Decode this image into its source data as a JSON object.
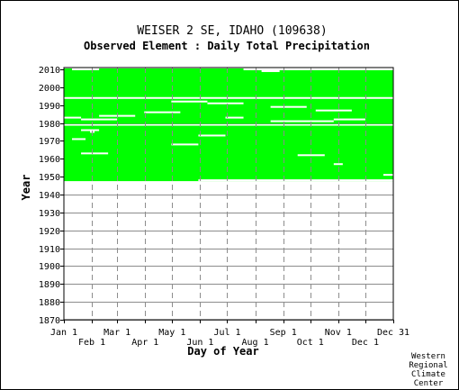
{
  "chart_data": {
    "type": "heatmap",
    "title": "WEISER 2 SE, IDAHO   (109638)",
    "subtitle": "Observed Element : Daily Total Precipitation",
    "xlabel": "Day of Year",
    "ylabel": "Year",
    "x_range": [
      1,
      366
    ],
    "ylim": [
      1870,
      2011
    ],
    "y_ticks": [
      "2010",
      "2000",
      "1990",
      "1980",
      "1970",
      "1960",
      "1950",
      "1940",
      "1930",
      "1920",
      "1910",
      "1900",
      "1890",
      "1880",
      "1870"
    ],
    "x_ticks_top": [
      {
        "label": "Jan 1",
        "day": 1
      },
      {
        "label": "Mar 1",
        "day": 60
      },
      {
        "label": "May 1",
        "day": 121
      },
      {
        "label": "Jul 1",
        "day": 182
      },
      {
        "label": "Sep 1",
        "day": 244
      },
      {
        "label": "Nov 1",
        "day": 305
      },
      {
        "label": "Dec 31",
        "day": 366
      }
    ],
    "x_ticks_bottom": [
      {
        "label": "Feb 1",
        "day": 32
      },
      {
        "label": "Apr 1",
        "day": 91
      },
      {
        "label": "Jun 1",
        "day": 152
      },
      {
        "label": "Aug 1",
        "day": 213
      },
      {
        "label": "Oct 1",
        "day": 274
      },
      {
        "label": "Dec 1",
        "day": 335
      }
    ],
    "data_coverage": [
      {
        "year_start": 1948,
        "year_end": 1978,
        "day_start": 1,
        "day_end": 366
      },
      {
        "year_start": 1980,
        "year_end": 1993,
        "day_start": 1,
        "day_end": 366
      },
      {
        "year_start": 1995,
        "year_end": 2010,
        "day_start": 1,
        "day_end": 366
      }
    ],
    "missing_spans": [
      {
        "year": 2010,
        "day_start": 10,
        "day_end": 40
      },
      {
        "year": 2010,
        "day_start": 200,
        "day_end": 366
      },
      {
        "year": 2009,
        "day_start": 220,
        "day_end": 240
      },
      {
        "year": 1992,
        "day_start": 120,
        "day_end": 160
      },
      {
        "year": 1991,
        "day_start": 160,
        "day_end": 200
      },
      {
        "year": 1989,
        "day_start": 230,
        "day_end": 270
      },
      {
        "year": 1987,
        "day_start": 280,
        "day_end": 320
      },
      {
        "year": 1986,
        "day_start": 90,
        "day_end": 130
      },
      {
        "year": 1984,
        "day_start": 40,
        "day_end": 80
      },
      {
        "year": 1983,
        "day_start": 1,
        "day_end": 20
      },
      {
        "year": 1983,
        "day_start": 180,
        "day_end": 200
      },
      {
        "year": 1982,
        "day_start": 20,
        "day_end": 60
      },
      {
        "year": 1982,
        "day_start": 300,
        "day_end": 335
      },
      {
        "year": 1981,
        "day_start": 230,
        "day_end": 300
      },
      {
        "year": 1976,
        "day_start": 20,
        "day_end": 40
      },
      {
        "year": 1975,
        "day_start": 30,
        "day_end": 35
      },
      {
        "year": 1973,
        "day_start": 150,
        "day_end": 180
      },
      {
        "year": 1971,
        "day_start": 10,
        "day_end": 25
      },
      {
        "year": 1968,
        "day_start": 120,
        "day_end": 150
      },
      {
        "year": 1963,
        "day_start": 20,
        "day_end": 50
      },
      {
        "year": 1962,
        "day_start": 260,
        "day_end": 290
      },
      {
        "year": 1957,
        "day_start": 300,
        "day_end": 310
      },
      {
        "year": 1951,
        "day_start": 355,
        "day_end": 366
      },
      {
        "year": 1948,
        "day_start": 150,
        "day_end": 366
      }
    ],
    "data_color": "#00ff00",
    "grid": true,
    "credit": [
      "Western",
      "Regional",
      "Climate",
      "Center"
    ]
  }
}
